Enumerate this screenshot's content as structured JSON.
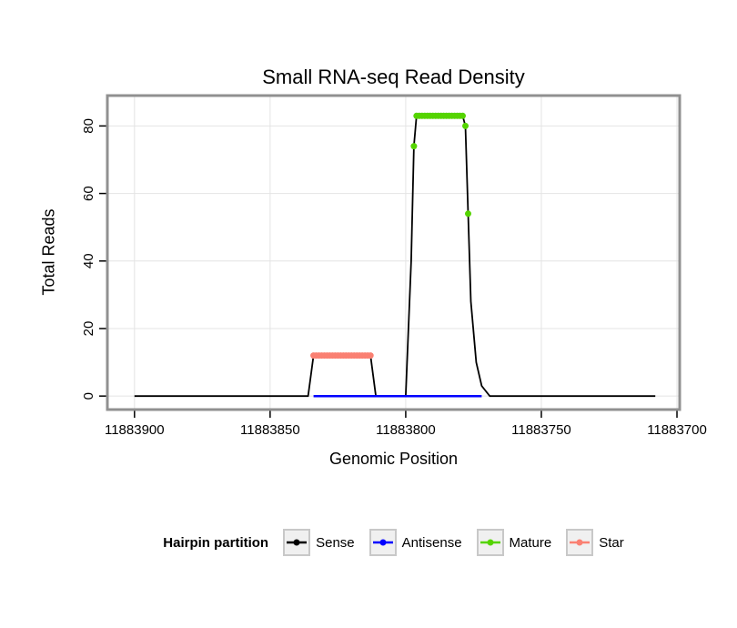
{
  "legend": {
    "title": "Hairpin partition",
    "items": [
      {
        "label": "Sense",
        "color": "#000000"
      },
      {
        "label": "Antisense",
        "color": "#0000ff"
      },
      {
        "label": "Mature",
        "color": "#55d400"
      },
      {
        "label": "Star",
        "color": "#fa8072"
      }
    ]
  },
  "chart_data": {
    "type": "line",
    "title": "Small RNA-seq Read Density",
    "xlabel": "Genomic Position",
    "ylabel": "Total Reads",
    "x_axis": {
      "ticks": [
        11883900,
        11883850,
        11883800,
        11883750,
        11883700
      ],
      "range": [
        11883910,
        11883699
      ],
      "reversed": true
    },
    "y_axis": {
      "ticks": [
        0,
        20,
        40,
        60,
        80
      ],
      "range": [
        -4,
        89
      ]
    },
    "grid": "major",
    "grid_color": "#e4e4e4",
    "border_color": "#909090",
    "tick_color": "#000000",
    "legend_position": "bottom",
    "series": [
      {
        "name": "Sense",
        "type": "line",
        "color": "#000000",
        "width": 1.8,
        "points": [
          [
            11883900,
            0
          ],
          [
            11883836,
            0
          ],
          [
            11883834,
            12
          ],
          [
            11883813,
            12
          ],
          [
            11883811,
            0
          ],
          [
            11883800,
            0
          ],
          [
            11883798,
            40
          ],
          [
            11883797,
            74
          ],
          [
            11883796,
            83
          ],
          [
            11883779,
            83
          ],
          [
            11883778,
            80
          ],
          [
            11883777,
            54
          ],
          [
            11883776,
            28
          ],
          [
            11883774,
            10
          ],
          [
            11883772,
            3
          ],
          [
            11883769,
            0
          ],
          [
            11883708,
            0
          ]
        ]
      },
      {
        "name": "Antisense",
        "type": "line",
        "color": "#0000ff",
        "width": 2.5,
        "points": [
          [
            11883834,
            0
          ],
          [
            11883772,
            0
          ]
        ]
      },
      {
        "name": "Mature",
        "type": "points",
        "color": "#55d400",
        "radius": 3.5,
        "points": [
          [
            11883797,
            74
          ],
          [
            11883796,
            83
          ],
          [
            11883795,
            83
          ],
          [
            11883794,
            83
          ],
          [
            11883793,
            83
          ],
          [
            11883792,
            83
          ],
          [
            11883791,
            83
          ],
          [
            11883790,
            83
          ],
          [
            11883789,
            83
          ],
          [
            11883788,
            83
          ],
          [
            11883787,
            83
          ],
          [
            11883786,
            83
          ],
          [
            11883785,
            83
          ],
          [
            11883784,
            83
          ],
          [
            11883783,
            83
          ],
          [
            11883782,
            83
          ],
          [
            11883781,
            83
          ],
          [
            11883780,
            83
          ],
          [
            11883779,
            83
          ],
          [
            11883778,
            80
          ],
          [
            11883777,
            54
          ]
        ]
      },
      {
        "name": "Star",
        "type": "points",
        "color": "#fa8072",
        "radius": 3.5,
        "points": [
          [
            11883834,
            12
          ],
          [
            11883833,
            12
          ],
          [
            11883832,
            12
          ],
          [
            11883831,
            12
          ],
          [
            11883830,
            12
          ],
          [
            11883829,
            12
          ],
          [
            11883828,
            12
          ],
          [
            11883827,
            12
          ],
          [
            11883826,
            12
          ],
          [
            11883825,
            12
          ],
          [
            11883824,
            12
          ],
          [
            11883823,
            12
          ],
          [
            11883822,
            12
          ],
          [
            11883821,
            12
          ],
          [
            11883820,
            12
          ],
          [
            11883819,
            12
          ],
          [
            11883818,
            12
          ],
          [
            11883817,
            12
          ],
          [
            11883816,
            12
          ],
          [
            11883815,
            12
          ],
          [
            11883814,
            12
          ],
          [
            11883813,
            12
          ]
        ]
      }
    ]
  }
}
